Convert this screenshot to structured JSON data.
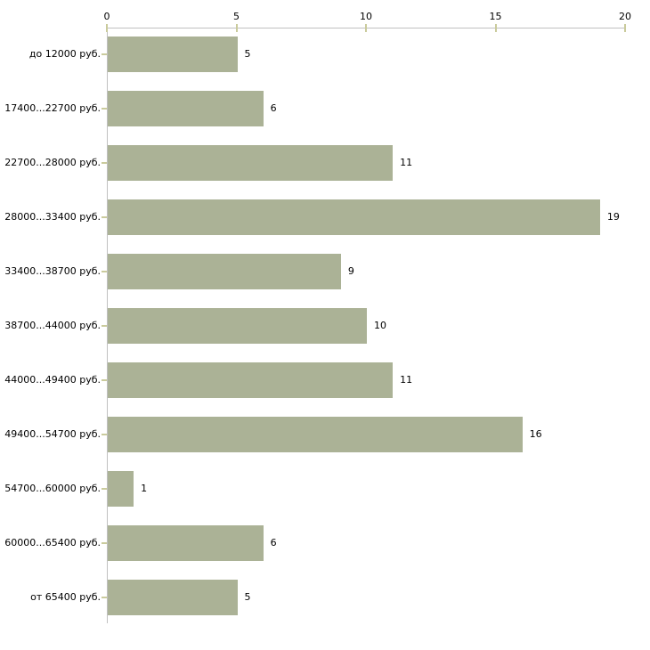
{
  "chart_data": {
    "type": "bar",
    "orientation": "horizontal",
    "title": "",
    "xlabel": "",
    "ylabel": "",
    "categories": [
      "до 12000 руб.",
      "17400...22700 руб.",
      "22700...28000 руб.",
      "28000...33400 руб.",
      "33400...38700 руб.",
      "38700...44000 руб.",
      "44000...49400 руб.",
      "49400...54700 руб.",
      "54700...60000 руб.",
      "60000...65400 руб.",
      "от 65400 руб."
    ],
    "values": [
      5,
      6,
      11,
      19,
      9,
      10,
      11,
      16,
      1,
      6,
      5
    ],
    "xlim": [
      0,
      20
    ],
    "xticks": [
      0,
      5,
      10,
      15,
      20
    ],
    "axis_position": "top",
    "grid": false,
    "legend": "none",
    "value_labels": "right-of-bar",
    "colors": {
      "bar": "#abb296",
      "axis_line": "#c0c0c0",
      "tick": "#cacb9c",
      "text": "#000000",
      "background": "#ffffff"
    }
  }
}
